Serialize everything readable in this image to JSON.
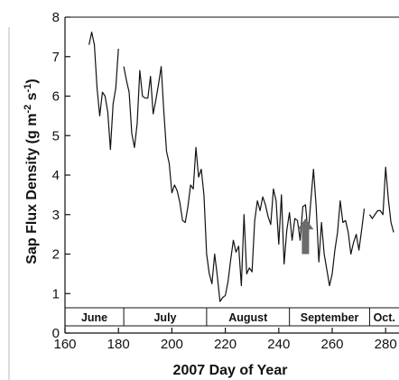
{
  "chart_data": {
    "type": "line",
    "xlabel": "2007 Day of Year",
    "ylabel_main": "Sap Flux Density (g m",
    "ylabel_sup1": "-2",
    "ylabel_mid": " s",
    "ylabel_sup2": "-1",
    "ylabel_end": ")",
    "xlim": [
      160,
      285
    ],
    "ylim": [
      0,
      8
    ],
    "x_ticks": [
      "160",
      "180",
      "200",
      "220",
      "240",
      "260",
      "280"
    ],
    "y_ticks": [
      "0",
      "1",
      "2",
      "3",
      "4",
      "5",
      "6",
      "7",
      "8"
    ],
    "grid": false,
    "months": [
      {
        "label": "June",
        "start": 160,
        "end": 182
      },
      {
        "label": "July",
        "start": 182,
        "end": 213
      },
      {
        "label": "August",
        "start": 213,
        "end": 244
      },
      {
        "label": "September",
        "start": 244,
        "end": 274
      },
      {
        "label": "Oct.",
        "start": 274,
        "end": 285
      }
    ],
    "arrow": {
      "x": 250,
      "y_tip": 2.9,
      "y_base": 2.0,
      "color": "#6b6b6b"
    },
    "line_color": "#111111",
    "series": [
      {
        "segments": [
          [
            [
              169,
              7.3
            ],
            [
              170,
              7.62
            ],
            [
              171,
              7.3
            ],
            [
              172,
              6.2
            ],
            [
              173,
              5.5
            ],
            [
              174,
              6.1
            ],
            [
              175,
              6.0
            ],
            [
              176,
              5.6
            ],
            [
              177,
              4.65
            ],
            [
              178,
              5.8
            ],
            [
              179,
              6.2
            ],
            [
              180,
              7.2
            ]
          ],
          [
            [
              182,
              6.75
            ],
            [
              183,
              6.4
            ],
            [
              184,
              6.1
            ],
            [
              185,
              5.05
            ],
            [
              186,
              4.7
            ],
            [
              187,
              5.3
            ],
            [
              188,
              6.65
            ],
            [
              189,
              6.0
            ],
            [
              190,
              5.95
            ],
            [
              191,
              5.95
            ],
            [
              192,
              6.5
            ],
            [
              193,
              5.55
            ],
            [
              194,
              5.9
            ],
            [
              195,
              6.3
            ],
            [
              196,
              6.75
            ],
            [
              197,
              5.6
            ],
            [
              198,
              4.6
            ],
            [
              199,
              4.3
            ],
            [
              200,
              3.55
            ],
            [
              201,
              3.75
            ],
            [
              202,
              3.6
            ],
            [
              203,
              3.3
            ],
            [
              204,
              2.85
            ],
            [
              205,
              2.8
            ],
            [
              206,
              3.2
            ],
            [
              207,
              3.75
            ],
            [
              208,
              3.65
            ],
            [
              209,
              4.7
            ],
            [
              210,
              3.95
            ],
            [
              211,
              4.15
            ],
            [
              212,
              3.5
            ],
            [
              213,
              2.0
            ],
            [
              214,
              1.5
            ],
            [
              215,
              1.25
            ],
            [
              216,
              2.0
            ],
            [
              217,
              1.45
            ],
            [
              218,
              0.8
            ],
            [
              219,
              0.9
            ],
            [
              220,
              0.95
            ],
            [
              221,
              1.3
            ],
            [
              222,
              1.85
            ],
            [
              223,
              2.35
            ],
            [
              224,
              2.05
            ],
            [
              225,
              2.2
            ],
            [
              226,
              1.2
            ],
            [
              227,
              3.0
            ],
            [
              228,
              1.5
            ],
            [
              229,
              1.65
            ],
            [
              230,
              1.55
            ],
            [
              231,
              2.85
            ],
            [
              232,
              3.35
            ],
            [
              233,
              3.1
            ],
            [
              234,
              3.45
            ],
            [
              235,
              3.25
            ],
            [
              236,
              2.95
            ],
            [
              237,
              2.75
            ],
            [
              238,
              3.65
            ],
            [
              239,
              3.35
            ],
            [
              240,
              2.25
            ],
            [
              241,
              3.5
            ],
            [
              242,
              1.75
            ],
            [
              243,
              2.6
            ],
            [
              244,
              3.05
            ],
            [
              245,
              2.35
            ],
            [
              246,
              2.9
            ],
            [
              247,
              2.85
            ],
            [
              248,
              2.35
            ],
            [
              249,
              3.2
            ],
            [
              250,
              3.25
            ],
            [
              251,
              2.5
            ],
            [
              252,
              3.35
            ],
            [
              253,
              4.15
            ],
            [
              254,
              3.2
            ],
            [
              255,
              1.8
            ],
            [
              256,
              2.8
            ],
            [
              257,
              2.0
            ],
            [
              258,
              1.6
            ],
            [
              259,
              1.2
            ],
            [
              260,
              1.5
            ],
            [
              261,
              2.1
            ],
            [
              262,
              2.55
            ],
            [
              263,
              3.35
            ],
            [
              264,
              2.8
            ],
            [
              265,
              2.85
            ],
            [
              266,
              2.55
            ],
            [
              267,
              2.0
            ],
            [
              268,
              2.3
            ],
            [
              269,
              2.5
            ],
            [
              270,
              2.1
            ],
            [
              271,
              2.6
            ],
            [
              272,
              3.15
            ]
          ],
          [
            [
              274,
              3.0
            ],
            [
              275,
              2.9
            ],
            [
              276,
              3.0
            ],
            [
              277,
              3.1
            ],
            [
              278,
              3.1
            ],
            [
              279,
              3.0
            ],
            [
              280,
              4.2
            ],
            [
              281,
              3.4
            ],
            [
              282,
              2.8
            ],
            [
              283,
              2.55
            ]
          ]
        ]
      }
    ]
  }
}
